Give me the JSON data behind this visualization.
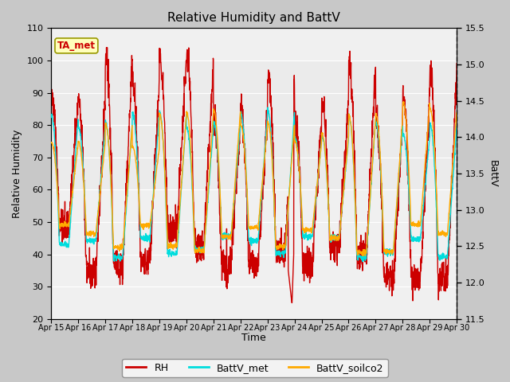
{
  "title": "Relative Humidity and BattV",
  "ylabel_left": "Relative Humidity",
  "ylabel_right": "BattV",
  "xlabel": "Time",
  "ylim_left": [
    20,
    110
  ],
  "ylim_right": [
    11.5,
    15.5
  ],
  "yticks_left": [
    20,
    30,
    40,
    50,
    60,
    70,
    80,
    90,
    100,
    110
  ],
  "yticks_right": [
    11.5,
    12.0,
    12.5,
    13.0,
    13.5,
    14.0,
    14.5,
    15.0,
    15.5
  ],
  "xtick_labels": [
    "Apr 15",
    "Apr 16",
    "Apr 17",
    "Apr 18",
    "Apr 19",
    "Apr 20",
    "Apr 21",
    "Apr 22",
    "Apr 23",
    "Apr 24",
    "Apr 25",
    "Apr 26",
    "Apr 27",
    "Apr 28",
    "Apr 29",
    "Apr 30"
  ],
  "annotation_text": "TA_met",
  "rh_color": "#cc0000",
  "battv_met_color": "#00dddd",
  "battv_soilco2_color": "#ffaa00",
  "legend_labels": [
    "RH",
    "BattV_met",
    "BattV_soilco2"
  ],
  "grid_color": "#ffffff",
  "grid_linewidth": 0.8,
  "line_width": 1.0,
  "fig_facecolor": "#c8c8c8",
  "ax_facecolor": "#f0f0f0",
  "inner_band_color": "#e0e0e0"
}
